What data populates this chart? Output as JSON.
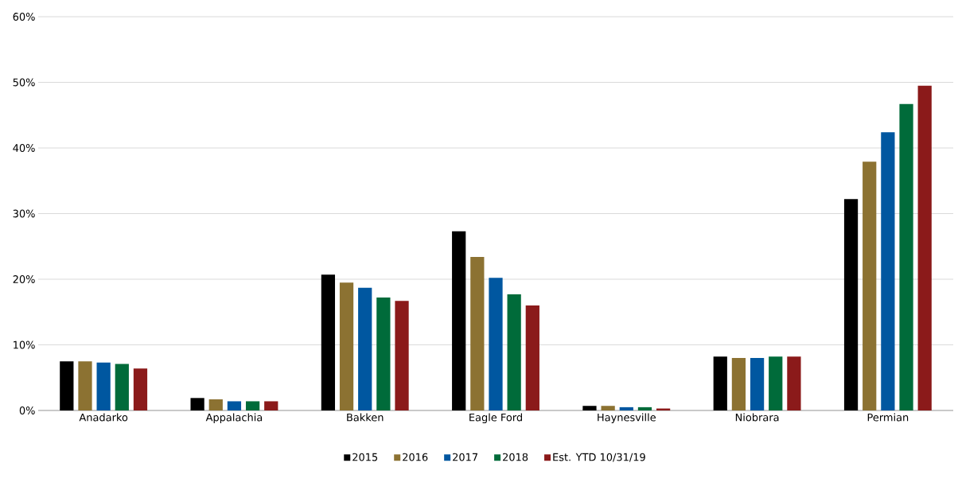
{
  "chart_data": {
    "type": "bar",
    "categories": [
      "Anadarko",
      "Appalachia",
      "Bakken",
      "Eagle Ford",
      "Haynesville",
      "Niobrara",
      "Permian"
    ],
    "series": [
      {
        "name": "2015",
        "color": "#000000",
        "values": [
          7.5,
          1.9,
          20.7,
          27.3,
          0.7,
          8.2,
          32.2
        ]
      },
      {
        "name": "2016",
        "color": "#8c7232",
        "values": [
          7.5,
          1.7,
          19.5,
          23.4,
          0.7,
          8.0,
          37.9
        ]
      },
      {
        "name": "2017",
        "color": "#0057a0",
        "values": [
          7.3,
          1.4,
          18.7,
          20.2,
          0.5,
          8.0,
          42.4
        ]
      },
      {
        "name": "2018",
        "color": "#006b3a",
        "values": [
          7.1,
          1.4,
          17.2,
          17.7,
          0.5,
          8.2,
          46.7
        ]
      },
      {
        "name": "Est. YTD 10/31/19",
        "color": "#8b1a1a",
        "values": [
          6.4,
          1.4,
          16.7,
          16.0,
          0.3,
          8.2,
          49.5
        ]
      }
    ],
    "ylim": [
      0,
      60
    ],
    "yticks": [
      {
        "value": 0,
        "label": "0%"
      },
      {
        "value": 10,
        "label": "10%"
      },
      {
        "value": 20,
        "label": "20%"
      },
      {
        "value": 30,
        "label": "30%"
      },
      {
        "value": 40,
        "label": "40%"
      },
      {
        "value": 50,
        "label": "50%"
      },
      {
        "value": 60,
        "label": "60%"
      }
    ],
    "grid": "y",
    "legend": "bottom"
  }
}
